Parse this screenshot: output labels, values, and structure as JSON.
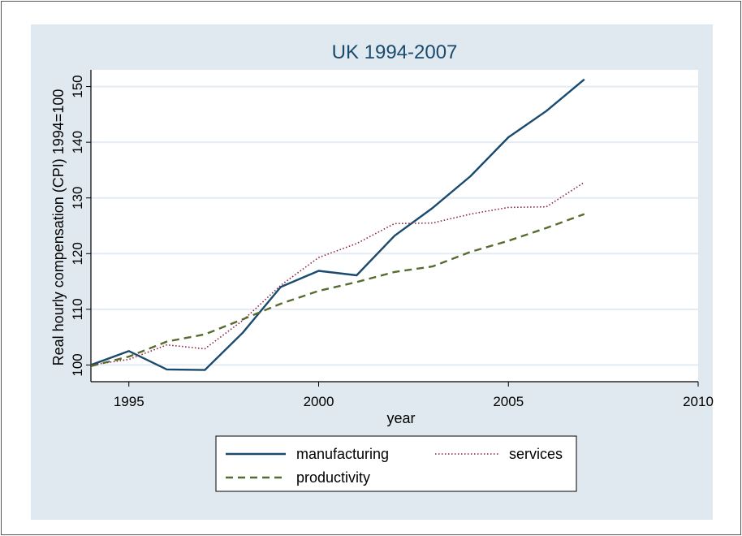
{
  "chart_data": {
    "type": "line",
    "title": "UK 1994-2007",
    "xlabel": "year",
    "ylabel": "Real hourly compensation (CPI) 1994=100",
    "xlim": [
      1994,
      2010
    ],
    "ylim": [
      97,
      153
    ],
    "x_ticks": [
      1995,
      2000,
      2005,
      2010
    ],
    "y_ticks": [
      100,
      110,
      120,
      130,
      140,
      150
    ],
    "grid": true,
    "legend_position": "bottom",
    "x": [
      1994,
      1995,
      1996,
      1997,
      1998,
      1999,
      2000,
      2001,
      2002,
      2003,
      2004,
      2005,
      2006,
      2007
    ],
    "series": [
      {
        "name": "manufacturing",
        "color": "#1a4a6e",
        "style": "solid",
        "values": [
          100,
          102.5,
          99.2,
          99.1,
          105.8,
          114.0,
          116.9,
          116.1,
          123.2,
          128.2,
          133.9,
          140.9,
          145.6,
          151.3
        ]
      },
      {
        "name": "services",
        "color": "#8b2040",
        "style": "dotted",
        "values": [
          100,
          101.0,
          103.6,
          102.9,
          108.0,
          114.3,
          119.3,
          121.8,
          125.4,
          125.5,
          127.1,
          128.3,
          128.4,
          132.8
        ]
      },
      {
        "name": "productivity",
        "color": "#556b2f",
        "style": "dashed",
        "values": [
          99.8,
          101.5,
          104.2,
          105.5,
          108.2,
          111.0,
          113.3,
          114.9,
          116.7,
          117.7,
          120.3,
          122.3,
          124.6,
          127.1
        ]
      }
    ]
  }
}
